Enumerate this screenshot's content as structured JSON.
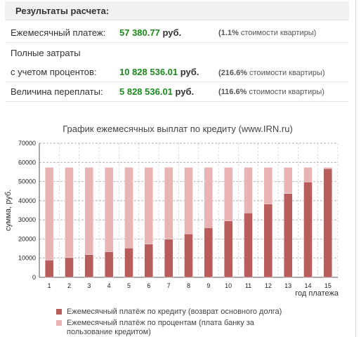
{
  "results": {
    "heading": "Результаты расчета:",
    "monthly_label": "Ежемесячный платеж:",
    "monthly_value": "57 380.77",
    "monthly_unit": "руб.",
    "monthly_note_pct": "(1.1%",
    "monthly_note_rest": "стоимости квартиры)",
    "total_label_1": "Полные затраты",
    "total_label_2": "с учетом процентов:",
    "total_value": "10 828 536.01",
    "total_unit": "руб.",
    "total_note_pct": "(216.6%",
    "total_note_rest": "стоимости квартиры)",
    "overpay_label": "Величина переплаты:",
    "overpay_value": "5 828 536.01",
    "overpay_unit": "руб.",
    "overpay_note_pct": "(116.6%",
    "overpay_note_rest": "стоимости квартиры)"
  },
  "colors": {
    "principal": "#b85c5c",
    "interest": "#e8b4b4",
    "value_green": "#1e8a1e",
    "grid": "#9a9a9a"
  },
  "chart_data": {
    "type": "bar",
    "stacked": true,
    "title": "График ежемесячных выплат по кредиту (www.IRN.ru)",
    "xlabel": "год платежа",
    "ylabel": "сумма, руб.",
    "ylim": [
      0,
      70000
    ],
    "yticks": [
      0,
      10000,
      20000,
      30000,
      40000,
      50000,
      60000,
      70000
    ],
    "grid": true,
    "legend_position": "bottom",
    "categories": [
      "1",
      "2",
      "3",
      "4",
      "5",
      "6",
      "7",
      "8",
      "9",
      "10",
      "11",
      "12",
      "13",
      "14",
      "15"
    ],
    "series": [
      {
        "name": "Ежемесячный платёж по кредиту (возврат основного долга)",
        "color": "#b85c5c",
        "values": [
          9000,
          10300,
          11800,
          13400,
          15300,
          17400,
          19900,
          22700,
          25900,
          29500,
          33600,
          38300,
          43700,
          49800,
          56700
        ]
      },
      {
        "name": "Ежемесячный платёж по процентам (плата банку за пользование кредитом)",
        "color": "#e8b4b4",
        "values": [
          48380,
          47080,
          45580,
          43980,
          42080,
          39980,
          37480,
          34680,
          31480,
          27880,
          23780,
          19080,
          13680,
          7580,
          680
        ]
      }
    ]
  }
}
